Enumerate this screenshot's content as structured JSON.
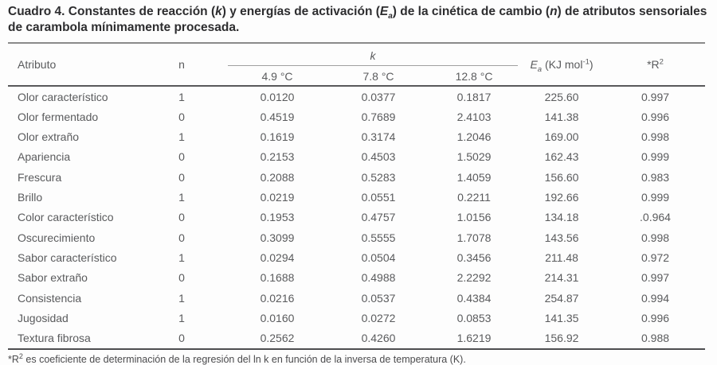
{
  "title": {
    "part1": "Cuadro 4. Constantes de reacción (",
    "k_symbol": "k",
    "part2": ") y energías de activación (",
    "ea_symbol": "E",
    "ea_sub": "a",
    "part3": ") de la cinética de cambio (",
    "n_symbol": "n",
    "part4": ") de atributos sensoriales de carambola mínimamente procesada."
  },
  "table": {
    "headers": {
      "atributo": "Atributo",
      "n": "n",
      "k": "k",
      "temps": [
        "4.9 °C",
        "7.8 °C",
        "12.8 °C"
      ],
      "ea": {
        "symbol": "E",
        "sub": "a",
        "unit_prefix": " (KJ mol",
        "sup": "-1",
        "unit_suffix": ")"
      },
      "r2": {
        "prefix": "*R",
        "sup": "2"
      }
    },
    "rows": [
      [
        "Olor característico",
        "1",
        "0.0120",
        "0.0377",
        "0.1817",
        "225.60",
        "0.997"
      ],
      [
        "Olor fermentado",
        "0",
        "0.4519",
        "0.7689",
        "2.4103",
        "141.38",
        "0.996"
      ],
      [
        "Olor extraño",
        "1",
        "0.1619",
        "0.3174",
        "1.2046",
        "169.00",
        "0.998"
      ],
      [
        "Apariencia",
        "0",
        "0.2153",
        "0.4503",
        "1.5029",
        "162.43",
        "0.999"
      ],
      [
        "Frescura",
        "0",
        "0.2088",
        "0.5283",
        "1.4059",
        "156.60",
        "0.983"
      ],
      [
        "Brillo",
        "1",
        "0.0219",
        "0.0551",
        "0.2211",
        "192.66",
        "0.999"
      ],
      [
        "Color característico",
        "0",
        "0.1953",
        "0.4757",
        "1.0156",
        "134.18",
        ".0.964"
      ],
      [
        "Oscurecimiento",
        "0",
        "0.3099",
        "0.5555",
        "1.7078",
        "143.56",
        "0.998"
      ],
      [
        "Sabor característico",
        "1",
        "0.0294",
        "0.0504",
        "0.3456",
        "211.48",
        "0.972"
      ],
      [
        "Sabor extraño",
        "0",
        "0.1688",
        "0.4988",
        "2.2292",
        "214.31",
        "0.997"
      ],
      [
        "Consistencia",
        "1",
        "0.0216",
        "0.0537",
        "0.4384",
        "254.87",
        "0.994"
      ],
      [
        "Jugosidad",
        "1",
        "0.0160",
        "0.0272",
        "0.0853",
        "141.35",
        "0.996"
      ],
      [
        "Textura fibrosa",
        "0",
        "0.2562",
        "0.4260",
        "1.6219",
        "156.92",
        "0.988"
      ]
    ]
  },
  "footnote": {
    "prefix": "*R",
    "sup": "2",
    "text": " es coeficiente de determinación de la regresión del ln k en función de la inversa de temperatura (K)."
  }
}
